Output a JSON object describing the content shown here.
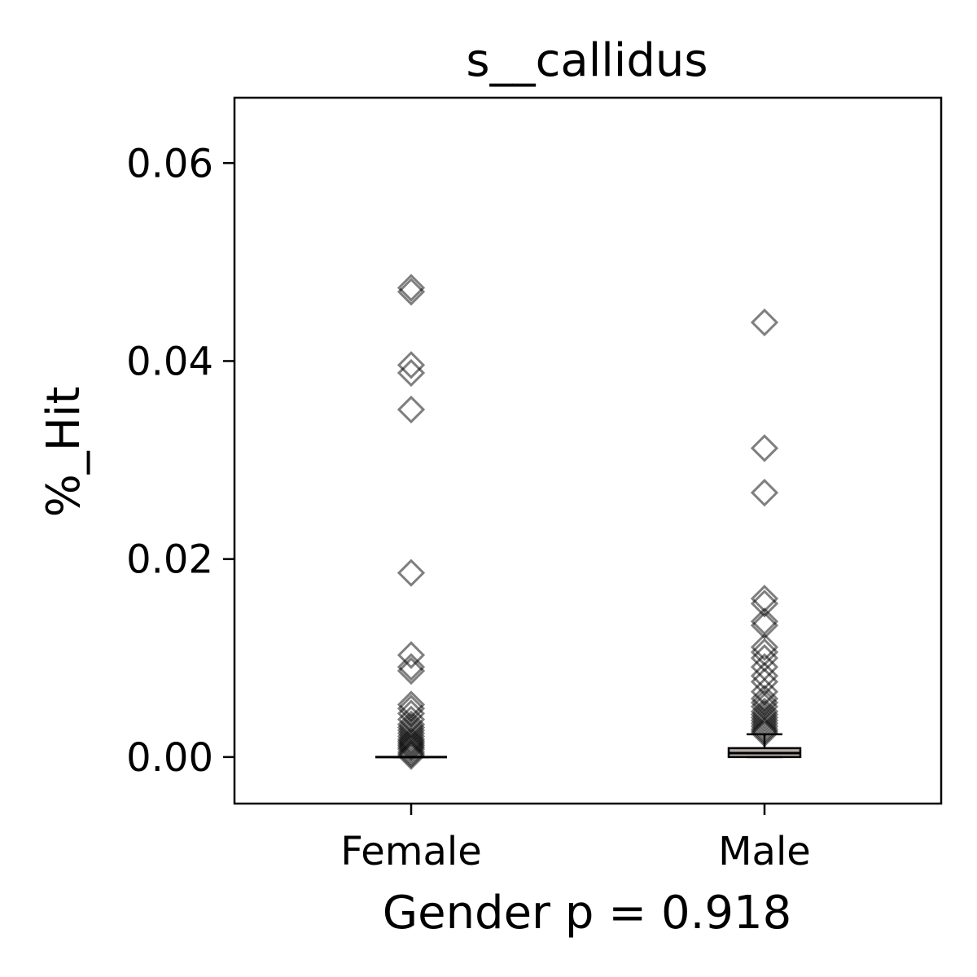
{
  "chart_data": {
    "type": "box",
    "title": "s__callidus",
    "xlabel": "Gender p = 0.918",
    "ylabel": "%_Hit",
    "categories": [
      "Female",
      "Male"
    ],
    "ylim": [
      -0.0047,
      0.0666
    ],
    "yticks": [
      {
        "value": 0.0,
        "label": "0.00"
      },
      {
        "value": 0.02,
        "label": "0.02"
      },
      {
        "value": 0.04,
        "label": "0.04"
      },
      {
        "value": 0.06,
        "label": "0.06"
      }
    ],
    "grid": false,
    "box_color": "#b5aca7",
    "point_color": "#000000",
    "boxes": [
      {
        "category": "Female",
        "q1": 0.0,
        "median": 0.0,
        "q3": 0.0,
        "whisker_low": 0.0,
        "whisker_high": 0.0
      },
      {
        "category": "Male",
        "q1": 0.0,
        "median": 0.0004,
        "q3": 0.0009,
        "whisker_low": 0.0,
        "whisker_high": 0.0023
      }
    ],
    "series": [
      {
        "category": "Female",
        "values": [
          0.0474,
          0.047,
          0.0396,
          0.0388,
          0.0351,
          0.0186,
          0.0103,
          0.0091,
          0.0087,
          0.0053,
          0.0049,
          0.0044,
          0.0038,
          0.0033,
          0.003,
          0.0027,
          0.0024,
          0.0021,
          0.0018,
          0.0016,
          0.0014,
          0.0012,
          0.001,
          0.0008,
          0.0005,
          0.0003,
          0.0001
        ]
      },
      {
        "category": "Male",
        "values": [
          0.0439,
          0.0312,
          0.0267,
          0.016,
          0.0155,
          0.0137,
          0.0133,
          0.0111,
          0.0106,
          0.01,
          0.0091,
          0.0082,
          0.0076,
          0.0066,
          0.0059,
          0.0055,
          0.0051,
          0.0046,
          0.0043,
          0.004,
          0.0037,
          0.0034,
          0.0031,
          0.0028,
          0.0026,
          0.0024
        ]
      }
    ]
  }
}
